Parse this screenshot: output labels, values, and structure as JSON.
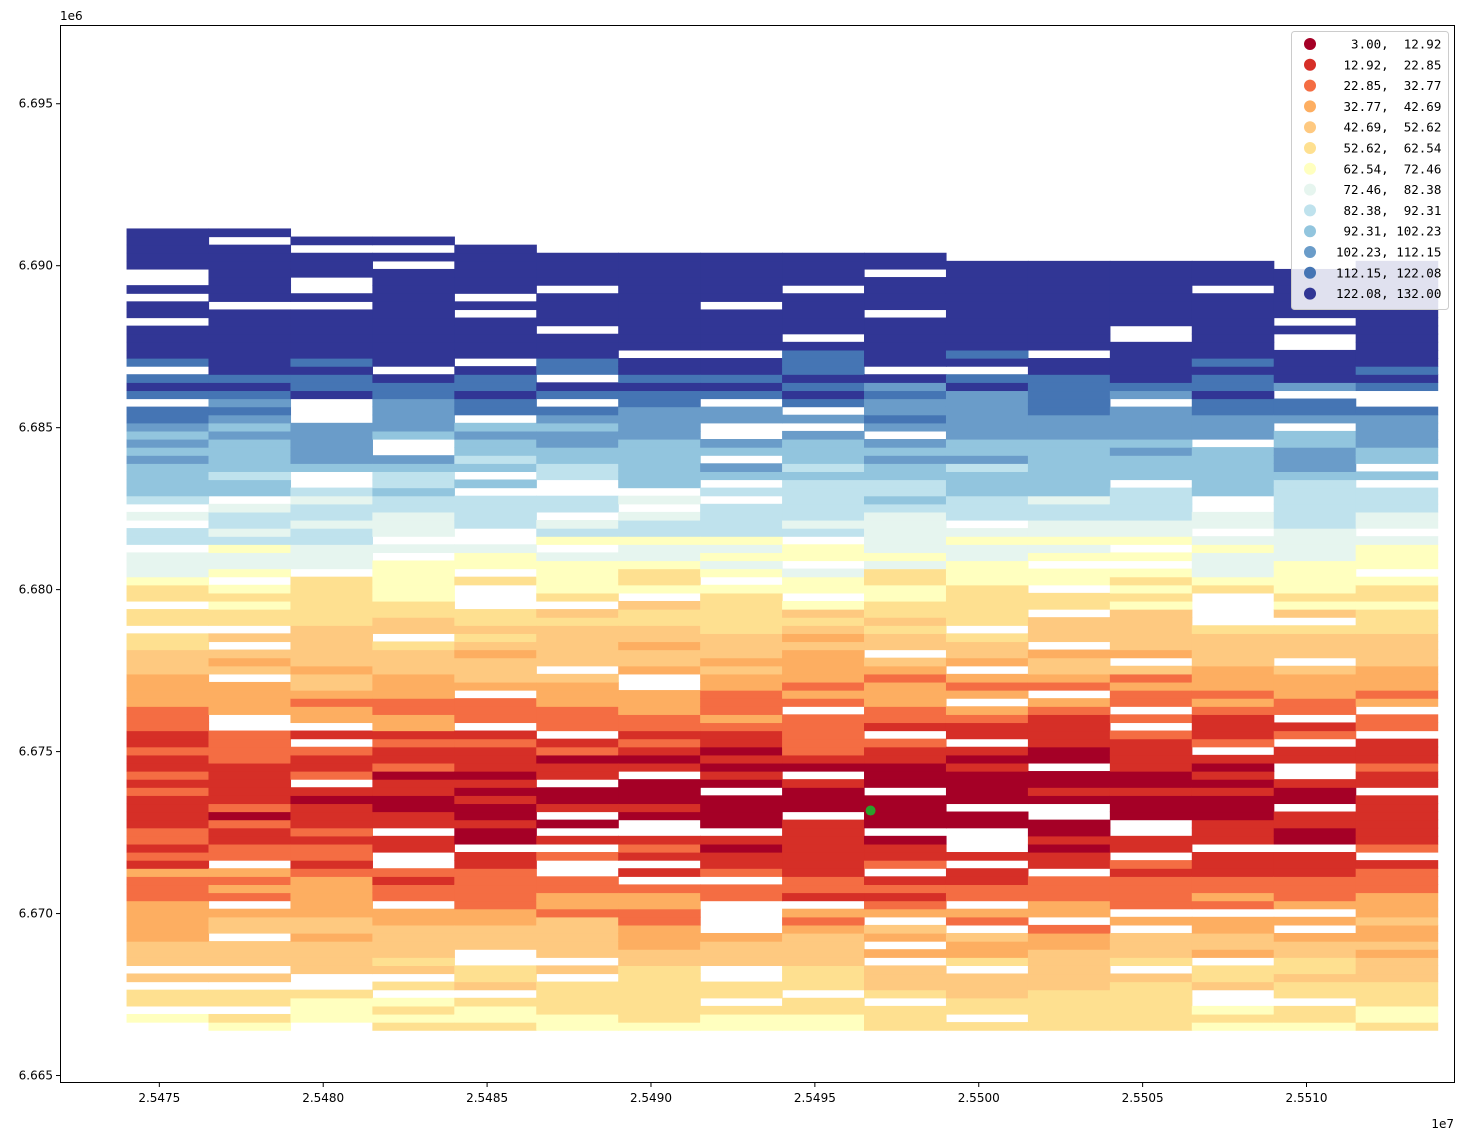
{
  "chart_data": {
    "type": "choropleth-grid",
    "title": "",
    "xlabel": "",
    "ylabel": "",
    "x_offset_label": "1e7",
    "y_offset_label": "1e6",
    "xlim": [
      2.5472,
      2.55145
    ],
    "ylim": [
      6.6648,
      6.6974
    ],
    "x_ticks": [
      {
        "value": 2.5475,
        "label": "2.5475"
      },
      {
        "value": 2.548,
        "label": "2.5480"
      },
      {
        "value": 2.5485,
        "label": "2.5485"
      },
      {
        "value": 2.549,
        "label": "2.5490"
      },
      {
        "value": 2.5495,
        "label": "2.5495"
      },
      {
        "value": 2.55,
        "label": "2.5500"
      },
      {
        "value": 2.5505,
        "label": "2.5505"
      },
      {
        "value": 2.551,
        "label": "2.5510"
      }
    ],
    "y_ticks": [
      {
        "value": 6.665,
        "label": "6.665"
      },
      {
        "value": 6.67,
        "label": "6.670"
      },
      {
        "value": 6.675,
        "label": "6.675"
      },
      {
        "value": 6.68,
        "label": "6.680"
      },
      {
        "value": 6.685,
        "label": "6.685"
      },
      {
        "value": 6.69,
        "label": "6.690"
      },
      {
        "value": 6.695,
        "label": "6.695"
      }
    ],
    "legend_position": "top-right",
    "classes": [
      {
        "label": "  3.00,  12.92",
        "color": "#a50026"
      },
      {
        "label": " 12.92,  22.85",
        "color": "#d62f27"
      },
      {
        "label": " 22.85,  32.77",
        "color": "#f46d43"
      },
      {
        "label": " 32.77,  42.69",
        "color": "#fdae61"
      },
      {
        "label": " 42.69,  52.62",
        "color": "#fec980"
      },
      {
        "label": " 52.62,  62.54",
        "color": "#fee090"
      },
      {
        "label": " 62.54,  72.46",
        "color": "#ffffbf"
      },
      {
        "label": " 72.46,  82.38",
        "color": "#e6f5ef"
      },
      {
        "label": " 82.38,  92.31",
        "color": "#bfe2ed"
      },
      {
        "label": " 92.31, 102.23",
        "color": "#92c5de"
      },
      {
        "label": "102.23, 112.15",
        "color": "#6a9cc9"
      },
      {
        "label": "112.15, 122.08",
        "color": "#4575b4"
      },
      {
        "label": "122.08, 132.00",
        "color": "#313695"
      }
    ],
    "marker": {
      "x": 2.54967,
      "y": 6.67318,
      "color": "#2ca02c"
    },
    "center": {
      "x": 2.54965,
      "y": 6.6733
    },
    "cell_size": 0.00025
  }
}
